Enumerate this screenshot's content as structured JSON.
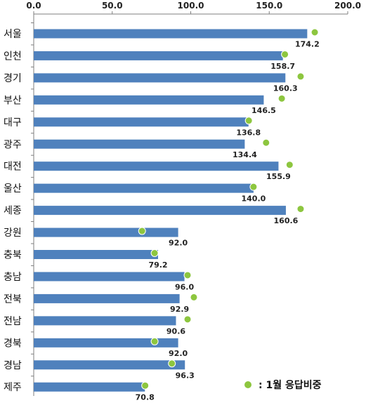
{
  "chart_data": {
    "type": "bar",
    "orientation": "horizontal",
    "title": "",
    "xlabel": "",
    "ylabel": "",
    "xlim": [
      0,
      200
    ],
    "x_ticks": [
      "0.0",
      "50.0",
      "100.0",
      "150.0",
      "200.0"
    ],
    "x_tick_values": [
      0,
      50,
      100,
      150,
      200
    ],
    "grid": false,
    "categories": [
      "서울",
      "인천",
      "경기",
      "부산",
      "대구",
      "광주",
      "대전",
      "울산",
      "세종",
      "강원",
      "충북",
      "충남",
      "전북",
      "전남",
      "경북",
      "경남",
      "제주"
    ],
    "series": [
      {
        "type": "bar",
        "values": [
          174.2,
          158.7,
          160.3,
          146.5,
          136.8,
          134.4,
          155.9,
          140.0,
          160.6,
          92.0,
          79.2,
          96.0,
          92.9,
          90.6,
          92.0,
          96.3,
          70.8
        ],
        "labels": [
          "174.2",
          "158.7",
          "160.3",
          "146.5",
          "136.8",
          "134.4",
          "155.9",
          "140.0",
          "160.6",
          "92.0",
          "79.2",
          "96.0",
          "92.9",
          "90.6",
          "92.0",
          "96.3",
          "70.8"
        ],
        "color": "#4f81bd"
      },
      {
        "name": ": 1월 응답비중",
        "type": "scatter",
        "values": [
          179,
          160,
          170,
          158,
          137,
          148,
          163,
          140,
          170,
          69,
          77,
          98,
          102,
          98,
          77,
          88,
          71
        ],
        "color": "#8dc63f"
      }
    ],
    "legend": {
      "position": "bottom-right",
      "text": ": 1월 응답비중"
    }
  }
}
